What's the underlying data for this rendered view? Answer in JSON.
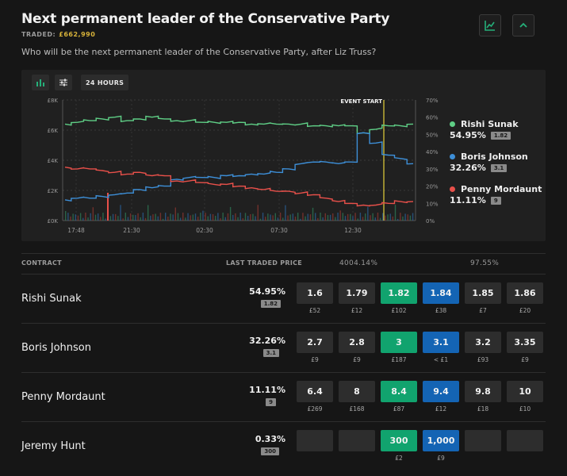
{
  "header": {
    "title": "Next permanent leader of the Conservative Party",
    "traded_label": "TRADED:",
    "traded_value": "£662,990",
    "question": "Who will be the next permanent leader of the Conservative Party, after Liz Truss?",
    "icons": [
      "line-chart-icon",
      "chevron-up-icon"
    ]
  },
  "toolbar": {
    "icons": [
      "bar-chart-icon",
      "sliders-icon"
    ],
    "range_label": "24 HOURS"
  },
  "chart_data": {
    "type": "line",
    "left_axis_ticks": [
      "£8K",
      "£6K",
      "£4K",
      "£2K",
      "£0K"
    ],
    "right_axis_ticks": [
      "70%",
      "60%",
      "50%",
      "40%",
      "30%",
      "20%",
      "10%",
      "0%"
    ],
    "x_ticks": [
      "17:48",
      "21:30",
      "02:30",
      "07:30",
      "12:30"
    ],
    "annotation": "EVENT START",
    "ylim_percent": [
      0,
      70
    ],
    "series": [
      {
        "name": "Rishi Sunak",
        "color": "#5fcf86",
        "values": [
          56,
          57,
          58,
          59,
          60,
          58,
          59,
          60,
          59,
          58,
          58,
          57,
          57,
          57,
          57,
          56,
          56,
          56,
          56,
          56,
          55,
          55,
          55,
          55,
          51,
          53,
          55,
          55,
          56
        ]
      },
      {
        "name": "Boris Johnson",
        "color": "#3d8fd8",
        "values": [
          12,
          13,
          13,
          14,
          15,
          16,
          18,
          19,
          20,
          24,
          25,
          25,
          25,
          26,
          26,
          27,
          27,
          28,
          30,
          33,
          34,
          34,
          33,
          34,
          51,
          45,
          38,
          36,
          33
        ]
      },
      {
        "name": "Penny Mordaunt",
        "color": "#e8504a",
        "values": [
          31,
          30,
          30,
          29,
          28,
          27,
          28,
          26,
          26,
          23,
          23,
          22,
          21,
          21,
          20,
          19,
          18,
          17,
          17,
          16,
          15,
          13,
          11,
          10,
          9,
          9,
          10,
          11,
          11
        ]
      }
    ]
  },
  "legend": [
    {
      "name": "Rishi Sunak",
      "pct": "54.95%",
      "odds": "1.82",
      "color": "#5fcf86"
    },
    {
      "name": "Boris Johnson",
      "pct": "32.26%",
      "odds": "3.1",
      "color": "#3d8fd8"
    },
    {
      "name": "Penny Mordaunt",
      "pct": "11.11%",
      "odds": "9",
      "color": "#e8504a"
    }
  ],
  "table": {
    "col_contract": "CONTRACT",
    "col_ltp": "LAST TRADED PRICE",
    "back_book": "4004.14%",
    "lay_book": "97.55%",
    "rows": [
      {
        "name": "Rishi Sunak",
        "pct": "54.95%",
        "ltp": "1.82",
        "prices": [
          "1.6",
          "1.79",
          "1.82",
          "1.84",
          "1.85",
          "1.86"
        ],
        "stakes": [
          "£52",
          "£12",
          "£102",
          "£38",
          "£7",
          "£20"
        ]
      },
      {
        "name": "Boris Johnson",
        "pct": "32.26%",
        "ltp": "3.1",
        "prices": [
          "2.7",
          "2.8",
          "3",
          "3.1",
          "3.2",
          "3.35"
        ],
        "stakes": [
          "£9",
          "£9",
          "£187",
          "< £1",
          "£93",
          "£9"
        ]
      },
      {
        "name": "Penny Mordaunt",
        "pct": "11.11%",
        "ltp": "9",
        "prices": [
          "6.4",
          "8",
          "8.4",
          "9.4",
          "9.8",
          "10"
        ],
        "stakes": [
          "£269",
          "£168",
          "£87",
          "£12",
          "£18",
          "£10"
        ]
      },
      {
        "name": "Jeremy Hunt",
        "pct": "0.33%",
        "ltp": "300",
        "prices": [
          "",
          "",
          "300",
          "1,000",
          "",
          ""
        ],
        "stakes": [
          "",
          "",
          "£2",
          "£9",
          "",
          ""
        ]
      }
    ]
  }
}
